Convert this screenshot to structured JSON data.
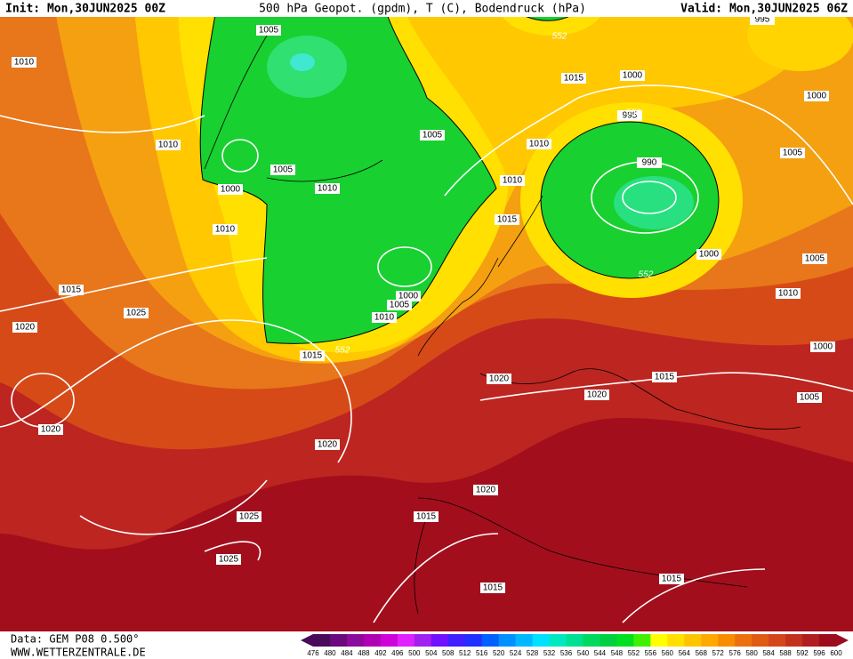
{
  "header": {
    "init": "Init: Mon,30JUN2025 00Z",
    "title": "500 hPa Geopot. (gpdm), T (C), Bodendruck (hPa)",
    "valid": "Valid: Mon,30JUN2025 06Z"
  },
  "map": {
    "isobar_labels": [
      1005,
      1010,
      1000,
      1015,
      1000,
      995,
      1010,
      1005,
      1010,
      1005,
      990,
      1005,
      1010,
      1000,
      1010,
      1015,
      1010,
      1000,
      1005,
      1015,
      1025,
      1010,
      1000,
      1005,
      1010,
      1020,
      1015,
      1000,
      1020,
      1015,
      1020,
      1005,
      1020,
      1020,
      1020,
      1015,
      1025,
      1025,
      1015,
      1015,
      995
    ],
    "contour_labels": [
      552,
      552,
      552,
      552
    ]
  },
  "legend": {
    "values": [
      476,
      480,
      484,
      488,
      492,
      496,
      500,
      504,
      508,
      512,
      516,
      520,
      524,
      528,
      532,
      536,
      540,
      544,
      548,
      552,
      556,
      560,
      564,
      568,
      572,
      576,
      580,
      584,
      588,
      592,
      596,
      600
    ],
    "colors": [
      "#4a0a5c",
      "#6a0a7c",
      "#8c0a9c",
      "#b000b4",
      "#d000d8",
      "#e020ff",
      "#a020f0",
      "#7010ff",
      "#4020ff",
      "#2030ff",
      "#0060ff",
      "#0090ff",
      "#00b8ff",
      "#00e0ff",
      "#00e8c0",
      "#00e090",
      "#00d860",
      "#00d040",
      "#00e020",
      "#40f000",
      "#ffff00",
      "#ffe000",
      "#ffc400",
      "#ffa800",
      "#f88c00",
      "#ec7010",
      "#e05a14",
      "#d4461a",
      "#c4301e",
      "#b01e20",
      "#9c0c1c"
    ]
  },
  "footer": {
    "source": "Data: GEM P08 0.500°",
    "site": "WWW.WETTERZENTRALE.DE"
  }
}
